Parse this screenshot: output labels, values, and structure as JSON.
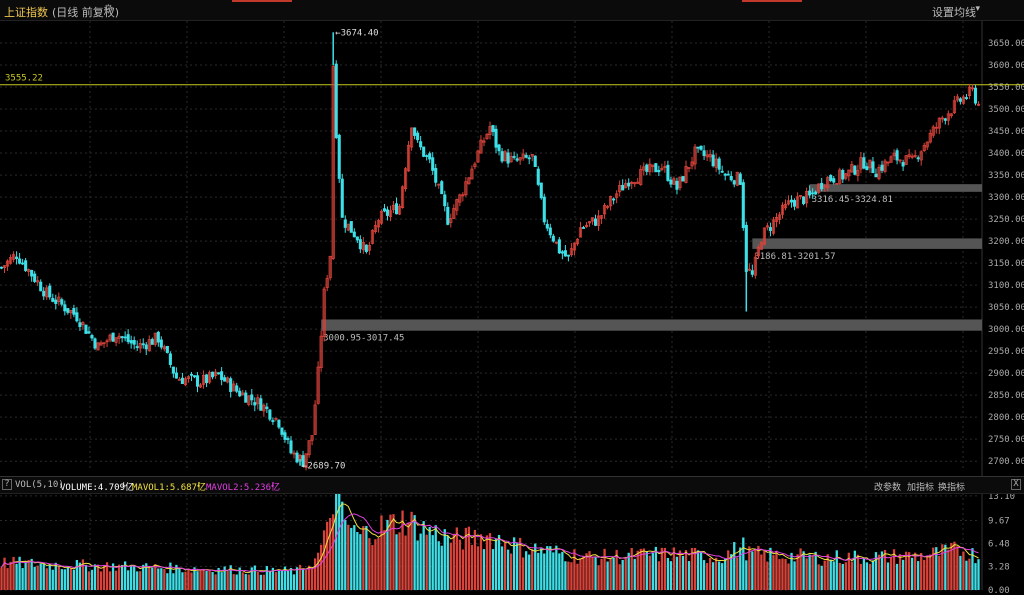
{
  "header": {
    "title": "上证指数",
    "subtitle": "(日线 前复权)",
    "settings_label": "设置均线",
    "icons": {
      "settings": "gear-icon",
      "dropdown": "caret-down-icon"
    }
  },
  "colors": {
    "up": "#d9433a",
    "down": "#3ee0e8",
    "level_line": "#c8c820",
    "zone": "#555555",
    "ma1": "#f0e040",
    "ma2": "#e040e0",
    "grid": "#2a2a2a"
  },
  "volume_panel": {
    "help_label": "?",
    "label": "VOL(5,10)",
    "volume_text": "VOLUME:4.709亿",
    "ma1_text": "MAVOL1:5.687亿",
    "ma2_text": "MAVOL2:5.236亿",
    "arrow": "↓",
    "buttons": {
      "params": "改参数",
      "add": "加指标",
      "switch": "换指标"
    },
    "close_label": "X"
  },
  "chart_data": [
    {
      "type": "candlestick",
      "y_ticks": [
        2700,
        2750,
        2800,
        2850,
        2900,
        2950,
        3000,
        3050,
        3100,
        3150,
        3200,
        3250,
        3300,
        3350,
        3400,
        3450,
        3500,
        3550,
        3600,
        3650
      ],
      "ylim": [
        2680,
        3700
      ],
      "y_tick_labels": [
        "2700.00",
        "2750.00",
        "2800.00",
        "2850.00",
        "2900.00",
        "2950.00",
        "3000.00",
        "3050.00",
        "3100.00",
        "3150.00",
        "3200.00",
        "3250.00",
        "3300.00",
        "3350.00",
        "3400.00",
        "3450.00",
        "3500.00",
        "3550.00",
        "3600.00",
        "3650.00"
      ],
      "horizontal_line": {
        "value": 3555.22,
        "label": "3555.22"
      },
      "annotations": [
        {
          "label": "3674.40",
          "value": 3674.4,
          "index": 110
        },
        {
          "label": "2689.70",
          "value": 2689.7,
          "index": 99
        }
      ],
      "zones": [
        {
          "low": 3000.95,
          "high": 3017.45,
          "label": "3000.95-3017.45",
          "start_index": 106
        },
        {
          "low": 3186.81,
          "high": 3201.57,
          "label": "3186.81-3201.57",
          "start_index": 249
        },
        {
          "low": 3316.45,
          "high": 3324.81,
          "label": "3316.45-3324.81",
          "start_index": 268
        }
      ],
      "n_bars": 325,
      "anchors": [
        [
          0,
          3140
        ],
        [
          5,
          3170
        ],
        [
          15,
          3080
        ],
        [
          25,
          3030
        ],
        [
          32,
          2960
        ],
        [
          38,
          2990
        ],
        [
          45,
          2960
        ],
        [
          52,
          2980
        ],
        [
          58,
          2890
        ],
        [
          66,
          2880
        ],
        [
          72,
          2895
        ],
        [
          78,
          2860
        ],
        [
          86,
          2830
        ],
        [
          92,
          2790
        ],
        [
          96,
          2720
        ],
        [
          100,
          2700
        ],
        [
          103,
          2760
        ],
        [
          105,
          2900
        ],
        [
          107,
          3080
        ],
        [
          109,
          3170
        ],
        [
          110,
          3600
        ],
        [
          111,
          3450
        ],
        [
          113,
          3250
        ],
        [
          118,
          3210
        ],
        [
          121,
          3170
        ],
        [
          125,
          3250
        ],
        [
          132,
          3280
        ],
        [
          136,
          3470
        ],
        [
          138,
          3420
        ],
        [
          142,
          3380
        ],
        [
          148,
          3250
        ],
        [
          152,
          3300
        ],
        [
          158,
          3400
        ],
        [
          162,
          3460
        ],
        [
          165,
          3400
        ],
        [
          170,
          3380
        ],
        [
          176,
          3390
        ],
        [
          180,
          3250
        ],
        [
          185,
          3180
        ],
        [
          188,
          3160
        ],
        [
          192,
          3230
        ],
        [
          198,
          3250
        ],
        [
          203,
          3300
        ],
        [
          208,
          3340
        ],
        [
          215,
          3360
        ],
        [
          219,
          3370
        ],
        [
          224,
          3320
        ],
        [
          230,
          3400
        ],
        [
          235,
          3390
        ],
        [
          240,
          3350
        ],
        [
          245,
          3340
        ],
        [
          247,
          3140
        ],
        [
          249,
          3120
        ],
        [
          252,
          3210
        ],
        [
          258,
          3260
        ],
        [
          262,
          3290
        ],
        [
          268,
          3300
        ],
        [
          273,
          3340
        ],
        [
          280,
          3350
        ],
        [
          286,
          3380
        ],
        [
          290,
          3360
        ],
        [
          296,
          3390
        ],
        [
          302,
          3380
        ],
        [
          306,
          3420
        ],
        [
          312,
          3480
        ],
        [
          318,
          3520
        ],
        [
          322,
          3540
        ],
        [
          324,
          3510
        ]
      ],
      "volume": {
        "y_ticks": [
          0.0,
          3.28,
          6.48,
          9.67,
          13.1
        ],
        "y_tick_labels": [
          "0.00",
          "3.28",
          "6.48",
          "9.67",
          "13.10"
        ],
        "ylim": [
          0,
          13.5
        ],
        "anchors": [
          [
            0,
            3.8
          ],
          [
            20,
            3.5
          ],
          [
            40,
            3.3
          ],
          [
            60,
            3.0
          ],
          [
            80,
            2.8
          ],
          [
            98,
            2.6
          ],
          [
            104,
            4.0
          ],
          [
            108,
            8.0
          ],
          [
            110,
            13.0
          ],
          [
            114,
            9.5
          ],
          [
            118,
            7.5
          ],
          [
            124,
            8.5
          ],
          [
            134,
            9.8
          ],
          [
            140,
            8.5
          ],
          [
            150,
            7.0
          ],
          [
            162,
            7.5
          ],
          [
            172,
            6.0
          ],
          [
            184,
            5.2
          ],
          [
            196,
            4.5
          ],
          [
            210,
            4.8
          ],
          [
            222,
            5.0
          ],
          [
            238,
            4.6
          ],
          [
            246,
            6.0
          ],
          [
            248,
            5.0
          ],
          [
            258,
            4.8
          ],
          [
            272,
            4.5
          ],
          [
            290,
            4.6
          ],
          [
            306,
            4.8
          ],
          [
            318,
            5.6
          ],
          [
            324,
            4.7
          ]
        ]
      }
    }
  ]
}
